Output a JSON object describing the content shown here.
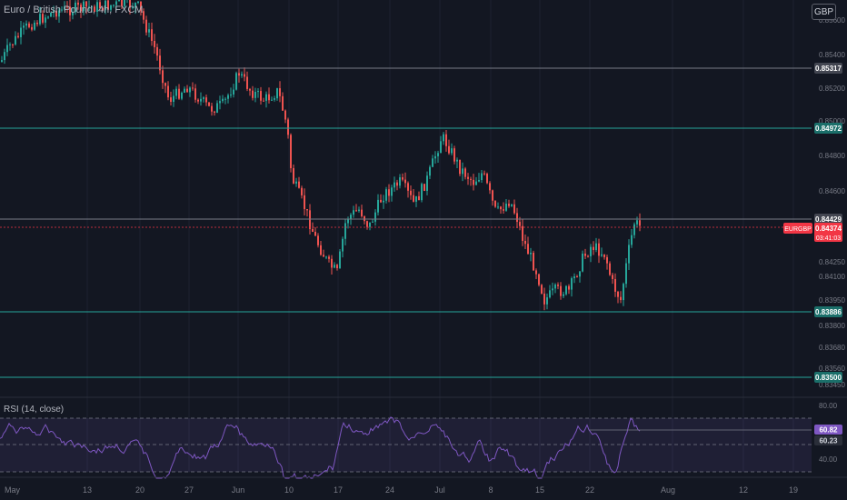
{
  "title": "Euro / British Pound, 4h, FXCM",
  "currency_button": "GBP",
  "symbol_tag": "EURGBP",
  "countdown": "03:41:03",
  "current_price": "0.84374",
  "price_axis": {
    "ticks": [
      "0.85600",
      "0.85400",
      "0.85200",
      "0.85000",
      "0.84800",
      "0.84600",
      "0.84250",
      "0.84100",
      "0.83950",
      "0.83800",
      "0.83680",
      "0.83560",
      "0.83450"
    ]
  },
  "levels": [
    {
      "price": "0.85317",
      "kind": "gray"
    },
    {
      "price": "0.84972",
      "kind": "teal"
    },
    {
      "price": "0.84429",
      "kind": "gray"
    },
    {
      "price": "0.83886",
      "kind": "teal"
    },
    {
      "price": "0.83500",
      "kind": "teal"
    }
  ],
  "time_axis": {
    "labels": [
      "May",
      "13",
      "20",
      "27",
      "Jun",
      "10",
      "17",
      "24",
      "Jul",
      "8",
      "15",
      "22",
      "Aug",
      "12",
      "19"
    ]
  },
  "rsi": {
    "label": "RSI (14, close)",
    "axis": [
      "80.00",
      "40.00"
    ],
    "tags": [
      "60.82",
      "60.23"
    ]
  },
  "colors": {
    "background": "#131722",
    "up": "#26a69a",
    "down": "#ef5350",
    "teal_line": "#26a69a",
    "gray_line": "#787b86",
    "rsi": "#7e57c2",
    "price_tag": "#f23645"
  },
  "chart_data": {
    "type": "candlestick",
    "title": "Euro / British Pound, 4h, FXCM",
    "ylim": [
      0.834,
      0.8562
    ],
    "close_path": [
      {
        "x": "May",
        "y": 0.854
      },
      {
        "x": "13",
        "y": 0.856
      },
      {
        "x": "17",
        "y": 0.8562
      },
      {
        "x": "20",
        "y": 0.8545
      },
      {
        "x": "22",
        "y": 0.852
      },
      {
        "x": "27",
        "y": 0.8515
      },
      {
        "x": "31",
        "y": 0.8518
      },
      {
        "x": "Jun",
        "y": 0.8522
      },
      {
        "x": "6",
        "y": 0.8513
      },
      {
        "x": "10",
        "y": 0.8498
      },
      {
        "x": "11",
        "y": 0.8455
      },
      {
        "x": "14",
        "y": 0.842
      },
      {
        "x": "17",
        "y": 0.8408
      },
      {
        "x": "20",
        "y": 0.844
      },
      {
        "x": "24",
        "y": 0.8455
      },
      {
        "x": "28",
        "y": 0.844
      },
      {
        "x": "Jul",
        "y": 0.8495
      },
      {
        "x": "4",
        "y": 0.8468
      },
      {
        "x": "8",
        "y": 0.8466
      },
      {
        "x": "10",
        "y": 0.8455
      },
      {
        "x": "12",
        "y": 0.843
      },
      {
        "x": "15",
        "y": 0.8395
      },
      {
        "x": "19",
        "y": 0.8398
      },
      {
        "x": "22",
        "y": 0.8425
      },
      {
        "x": "25",
        "y": 0.8398
      },
      {
        "x": "29",
        "y": 0.8437
      }
    ]
  }
}
